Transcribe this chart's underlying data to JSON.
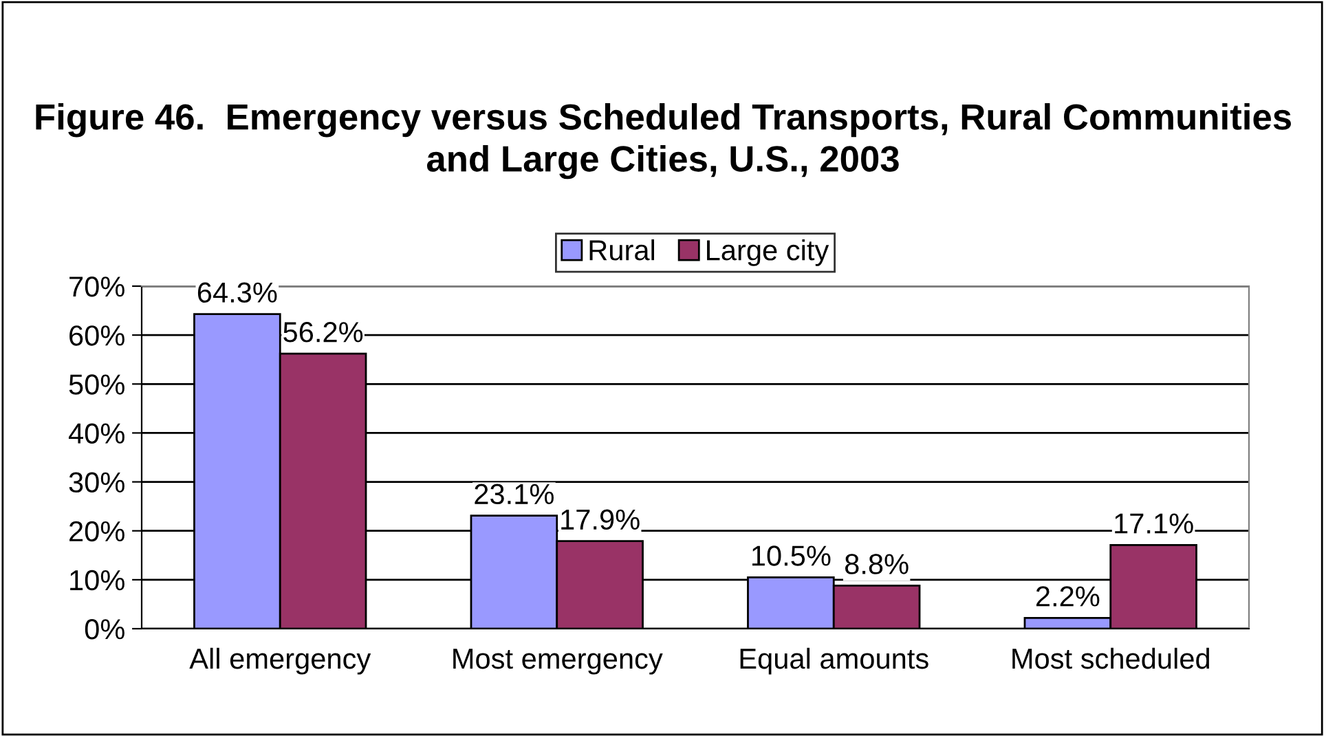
{
  "chart_data": {
    "type": "bar",
    "title": "Figure 46.  Emergency versus Scheduled Transports, Rural Communities and Large Cities, U.S., 2003",
    "categories": [
      "All emergency",
      "Most emergency",
      "Equal amounts",
      "Most scheduled"
    ],
    "series": [
      {
        "name": "Rural",
        "color": "#9999ff",
        "values": [
          64.3,
          23.1,
          10.5,
          2.2
        ],
        "value_labels": [
          "64.3%",
          "23.1%",
          "10.5%",
          "2.2%"
        ]
      },
      {
        "name": "Large city",
        "color": "#993366",
        "values": [
          56.2,
          17.9,
          8.8,
          17.1
        ],
        "value_labels": [
          "56.2%",
          "17.9%",
          "8.8%",
          "17.1%"
        ]
      }
    ],
    "ylim": [
      0,
      70
    ],
    "yticks": [
      {
        "value": 0,
        "label": "0%"
      },
      {
        "value": 10,
        "label": "10%"
      },
      {
        "value": 20,
        "label": "20%"
      },
      {
        "value": 30,
        "label": "30%"
      },
      {
        "value": 40,
        "label": "40%"
      },
      {
        "value": 50,
        "label": "50%"
      },
      {
        "value": 60,
        "label": "60%"
      },
      {
        "value": 70,
        "label": "70%"
      }
    ],
    "grid": "y",
    "legend": "top"
  }
}
